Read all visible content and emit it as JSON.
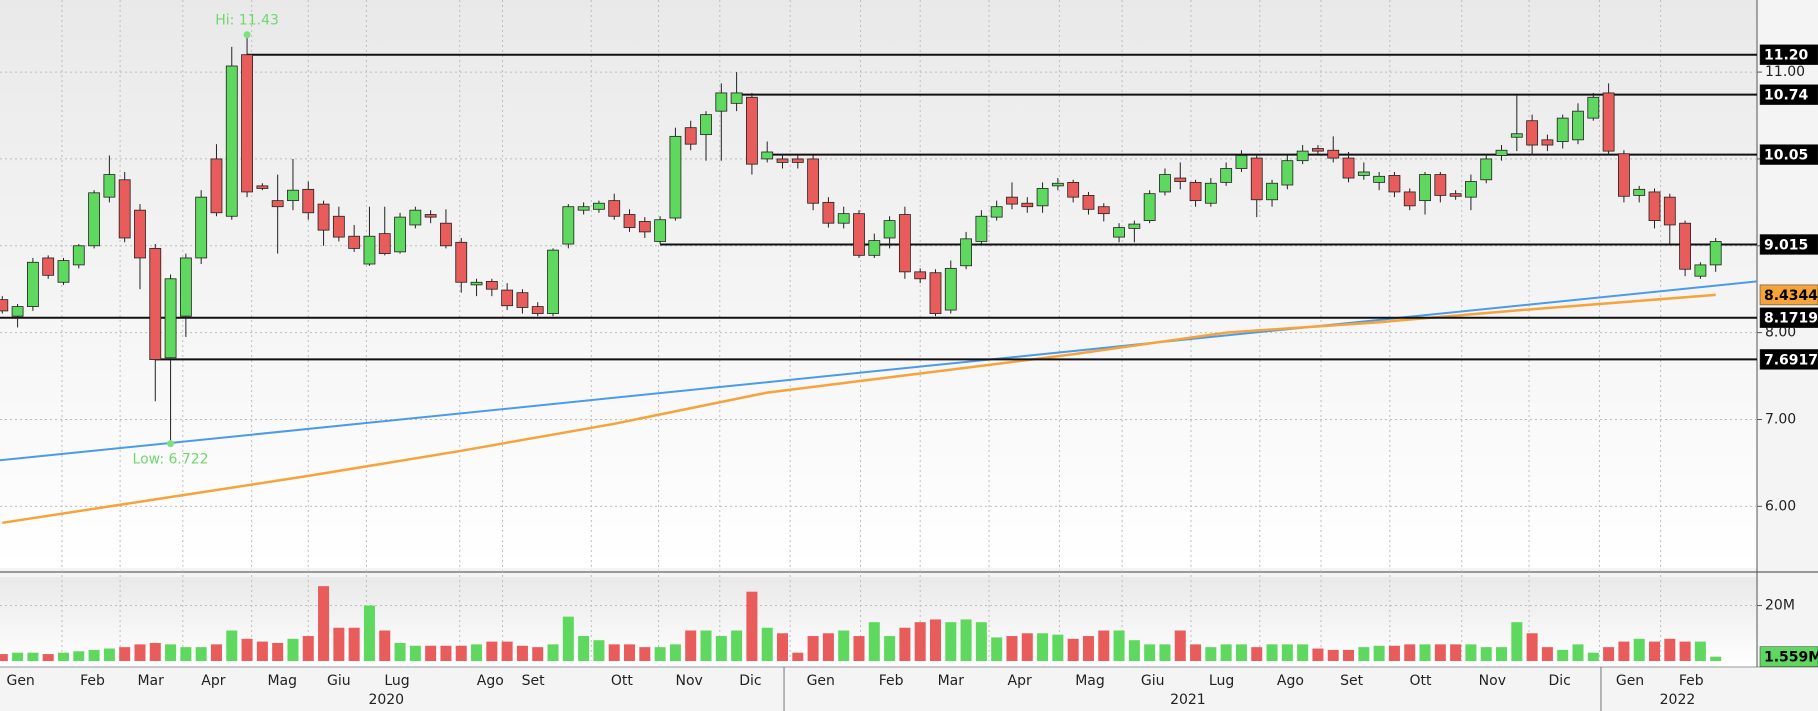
{
  "chart_data": {
    "type": "candlestick",
    "grid": true,
    "up_color": "#5fd85f",
    "down_color": "#e85c5c",
    "xlim": [
      -0.15,
      114.7
    ],
    "ylim": [
      5.29,
      11.83
    ],
    "yticks": [
      {
        "value": 6,
        "label": "6.00"
      },
      {
        "value": 7,
        "label": "7.00"
      },
      {
        "value": 8,
        "label": "8.00"
      },
      {
        "value": 9,
        "label": "9.00"
      },
      {
        "value": 10,
        "label": "10.00"
      },
      {
        "value": 11,
        "label": "11.00"
      }
    ],
    "xticks": [
      {
        "value": 1.2,
        "label": "Gen"
      },
      {
        "value": 5.9,
        "label": "Feb"
      },
      {
        "value": 9.7,
        "label": "Mar"
      },
      {
        "value": 13.8,
        "label": "Apr"
      },
      {
        "value": 18.3,
        "label": "Mag"
      },
      {
        "value": 22.0,
        "label": "Giu"
      },
      {
        "value": 25.8,
        "label": "Lug"
      },
      {
        "value": 31.9,
        "label": "Ago"
      },
      {
        "value": 34.7,
        "label": "Set"
      },
      {
        "value": 40.5,
        "label": "Ott"
      },
      {
        "value": 44.9,
        "label": "Nov"
      },
      {
        "value": 48.9,
        "label": "Dic"
      },
      {
        "value": 53.5,
        "label": "Gen"
      },
      {
        "value": 58.1,
        "label": "Feb"
      },
      {
        "value": 62.0,
        "label": "Mar"
      },
      {
        "value": 66.5,
        "label": "Apr"
      },
      {
        "value": 71.1,
        "label": "Mag"
      },
      {
        "value": 75.2,
        "label": "Giu"
      },
      {
        "value": 79.7,
        "label": "Lug"
      },
      {
        "value": 84.2,
        "label": "Ago"
      },
      {
        "value": 88.2,
        "label": "Set"
      },
      {
        "value": 92.7,
        "label": "Ott"
      },
      {
        "value": 97.4,
        "label": "Nov"
      },
      {
        "value": 101.8,
        "label": "Dic"
      },
      {
        "value": 106.4,
        "label": "Gen"
      },
      {
        "value": 110.4,
        "label": "Feb"
      }
    ],
    "year_ticks": [
      {
        "value": 25.1,
        "label": "2020"
      },
      {
        "value": 77.5,
        "label": "2021"
      },
      {
        "value": 109.5,
        "label": "2022"
      }
    ],
    "year_breaks": [
      51.1,
      104.5
    ],
    "candles": {
      "open": [
        8.38,
        8.19,
        8.3,
        8.86,
        8.58,
        8.78,
        9.0,
        9.56,
        9.76,
        9.41,
        8.97,
        7.71,
        8.19,
        8.86,
        10.0,
        9.34,
        11.2,
        9.69,
        9.52,
        9.52,
        9.65,
        9.48,
        9.34,
        9.11,
        8.79,
        9.14,
        8.93,
        9.24,
        9.36,
        9.26,
        9.04,
        8.55,
        8.59,
        8.49,
        8.46,
        8.3,
        8.22,
        9.02,
        9.41,
        9.42,
        9.52,
        9.36,
        9.28,
        9.05,
        9.32,
        10.36,
        10.28,
        10.55,
        10.64,
        10.71,
        10.0,
        10.0,
        10.0,
        10.0,
        9.5,
        9.26,
        9.37,
        8.89,
        9.09,
        9.36,
        8.7,
        8.69,
        8.26,
        8.77,
        9.05,
        9.33,
        9.56,
        9.49,
        9.46,
        9.69,
        9.73,
        9.58,
        9.45,
        9.1,
        9.2,
        9.29,
        9.62,
        9.78,
        9.73,
        9.49,
        9.73,
        9.89,
        10.01,
        9.53,
        9.7,
        9.98,
        10.12,
        10.1,
        10.01,
        9.81,
        9.73,
        9.81,
        9.62,
        9.52,
        9.82,
        9.6,
        9.56,
        9.76,
        10.04,
        10.25,
        10.44,
        10.22,
        10.2,
        10.22,
        10.47,
        10.76,
        10.06,
        9.58,
        9.62,
        9.56,
        9.26,
        8.65,
        8.78
      ],
      "high": [
        8.42,
        8.33,
        8.86,
        8.89,
        8.86,
        9.02,
        9.64,
        10.04,
        9.85,
        9.48,
        9.02,
        8.67,
        8.91,
        9.64,
        10.17,
        11.29,
        11.43,
        9.72,
        9.82,
        10.0,
        9.74,
        9.52,
        9.45,
        9.24,
        9.45,
        9.45,
        9.38,
        9.45,
        9.41,
        9.42,
        9.09,
        8.62,
        8.62,
        8.57,
        8.5,
        8.35,
        8.97,
        9.48,
        9.5,
        9.52,
        9.6,
        9.42,
        9.33,
        9.34,
        10.36,
        10.44,
        10.55,
        10.87,
        11.0,
        10.76,
        10.2,
        10.06,
        10.04,
        10.04,
        9.56,
        9.45,
        9.41,
        9.14,
        9.34,
        9.45,
        8.74,
        8.73,
        8.83,
        9.16,
        9.41,
        9.52,
        9.73,
        9.56,
        9.73,
        9.78,
        9.76,
        9.62,
        9.49,
        9.26,
        9.29,
        9.64,
        9.89,
        9.96,
        9.76,
        9.78,
        9.96,
        10.1,
        10.04,
        9.76,
        10.04,
        10.16,
        10.16,
        10.26,
        10.08,
        9.96,
        9.85,
        9.85,
        9.66,
        9.85,
        9.85,
        9.64,
        9.82,
        10.06,
        10.16,
        10.73,
        10.51,
        10.28,
        10.51,
        10.64,
        10.76,
        10.87,
        10.1,
        9.69,
        9.66,
        9.6,
        9.29,
        8.81,
        9.09
      ],
      "low": [
        8.22,
        8.06,
        8.25,
        8.62,
        8.55,
        8.74,
        8.97,
        9.5,
        9.04,
        8.5,
        7.21,
        6.722,
        7.95,
        8.79,
        9.34,
        9.3,
        9.56,
        9.64,
        8.91,
        9.41,
        9.3,
        9.0,
        9.05,
        8.93,
        8.77,
        8.89,
        8.91,
        9.2,
        9.26,
        8.97,
        8.46,
        8.42,
        8.42,
        8.26,
        8.22,
        8.19,
        8.19,
        8.97,
        9.36,
        9.38,
        9.3,
        9.16,
        9.09,
        9.02,
        9.29,
        10.1,
        9.98,
        9.98,
        10.55,
        9.82,
        9.96,
        9.89,
        9.89,
        9.41,
        9.21,
        9.2,
        8.86,
        8.86,
        8.97,
        8.62,
        8.57,
        8.19,
        8.22,
        8.73,
        9.02,
        9.29,
        9.42,
        9.38,
        9.38,
        9.64,
        9.5,
        9.36,
        9.28,
        9.04,
        9.04,
        9.26,
        9.58,
        9.65,
        9.45,
        9.45,
        9.69,
        9.85,
        9.33,
        9.45,
        9.65,
        9.94,
        10.06,
        9.96,
        9.73,
        9.76,
        9.64,
        9.56,
        9.41,
        9.36,
        9.5,
        9.53,
        9.41,
        9.72,
        9.98,
        10.09,
        10.04,
        10.09,
        10.12,
        10.17,
        10.44,
        10.04,
        9.5,
        9.5,
        9.2,
        9.02,
        8.65,
        8.62,
        8.7
      ],
      "close": [
        8.25,
        8.3,
        8.81,
        8.66,
        8.83,
        9.0,
        9.61,
        9.82,
        9.09,
        8.86,
        7.69,
        8.62,
        8.86,
        9.56,
        9.38,
        11.07,
        9.62,
        9.66,
        9.45,
        9.64,
        9.38,
        9.18,
        9.1,
        8.97,
        9.11,
        8.91,
        9.33,
        9.41,
        9.33,
        9.0,
        8.58,
        8.58,
        8.5,
        8.31,
        8.29,
        8.22,
        8.95,
        9.45,
        9.45,
        9.49,
        9.34,
        9.21,
        9.16,
        9.3,
        10.26,
        10.17,
        10.51,
        10.76,
        10.76,
        9.94,
        10.08,
        9.96,
        9.96,
        9.49,
        9.26,
        9.37,
        8.89,
        9.06,
        9.29,
        8.7,
        8.62,
        8.22,
        8.74,
        9.08,
        9.34,
        9.45,
        9.48,
        9.45,
        9.66,
        9.72,
        9.56,
        9.42,
        9.37,
        9.21,
        9.25,
        9.6,
        9.82,
        9.74,
        9.52,
        9.72,
        9.89,
        10.04,
        9.53,
        9.72,
        9.98,
        10.09,
        10.09,
        10.01,
        9.78,
        9.85,
        9.8,
        9.62,
        9.46,
        9.82,
        9.58,
        9.57,
        9.74,
        10.0,
        10.1,
        10.29,
        10.16,
        10.16,
        10.47,
        10.55,
        10.71,
        10.09,
        9.57,
        9.65,
        9.29,
        9.24,
        8.73,
        8.78,
        9.05
      ]
    },
    "levels": [
      {
        "value": 11.2,
        "label": "11.20",
        "start": 16
      },
      {
        "value": 10.74,
        "label": "10.74",
        "start": 48
      },
      {
        "value": 10.05,
        "label": "10.05",
        "start": 50
      },
      {
        "value": 9.015,
        "label": "9.015",
        "start": 43
      },
      {
        "value": 8.1719,
        "label": "8.1719",
        "start": -0.15
      },
      {
        "value": 7.6917,
        "label": "7.6917",
        "start": 10
      }
    ],
    "ma": {
      "color": "#f5a33a",
      "x": [
        0,
        10,
        20,
        30,
        40,
        50,
        60,
        70,
        80,
        90,
        100,
        112
      ],
      "values": [
        5.81,
        6.08,
        6.35,
        6.64,
        6.95,
        7.31,
        7.53,
        7.75,
        8.0,
        8.12,
        8.27,
        8.4344
      ]
    },
    "trendline": {
      "color": "#4a9be8",
      "x": [
        -0.15,
        114.7
      ],
      "values": [
        6.53,
        8.59
      ]
    },
    "annotations": [
      {
        "text": "Hi: 11.43",
        "x": 16,
        "value": 11.43
      },
      {
        "text": "Low: 6.722",
        "x": 11,
        "value": 6.722
      }
    ],
    "volume": {
      "ylim": [
        0,
        30.3
      ],
      "yticks": [
        {
          "value": 20,
          "label": "20M"
        }
      ],
      "values": [
        2.5,
        3,
        3,
        2.5,
        3,
        3.5,
        4,
        4.5,
        5,
        6,
        6.5,
        6,
        5,
        5,
        6,
        11,
        8,
        7,
        6.5,
        8,
        9,
        27,
        12,
        12,
        20,
        11,
        6.5,
        5.5,
        5.5,
        5.5,
        5.5,
        6,
        7,
        7,
        5.5,
        5,
        6,
        16,
        9,
        7.5,
        6,
        6,
        5,
        5,
        6,
        11,
        11,
        9,
        11,
        25,
        12,
        10,
        3,
        9,
        10,
        11,
        9,
        14,
        9,
        12,
        14,
        15,
        14,
        15,
        14,
        8.5,
        9,
        10,
        10,
        9.5,
        8,
        9,
        11,
        11,
        7.5,
        6,
        6,
        11,
        6,
        5,
        6,
        6,
        5,
        6,
        6,
        6,
        4.5,
        4,
        4,
        5,
        5.5,
        5.5,
        6,
        6,
        6,
        6,
        6,
        5,
        5,
        14,
        10,
        5,
        4,
        6,
        3,
        5,
        7,
        8,
        7,
        8,
        7,
        7,
        1.559
      ],
      "last_label": "1.559M"
    }
  }
}
